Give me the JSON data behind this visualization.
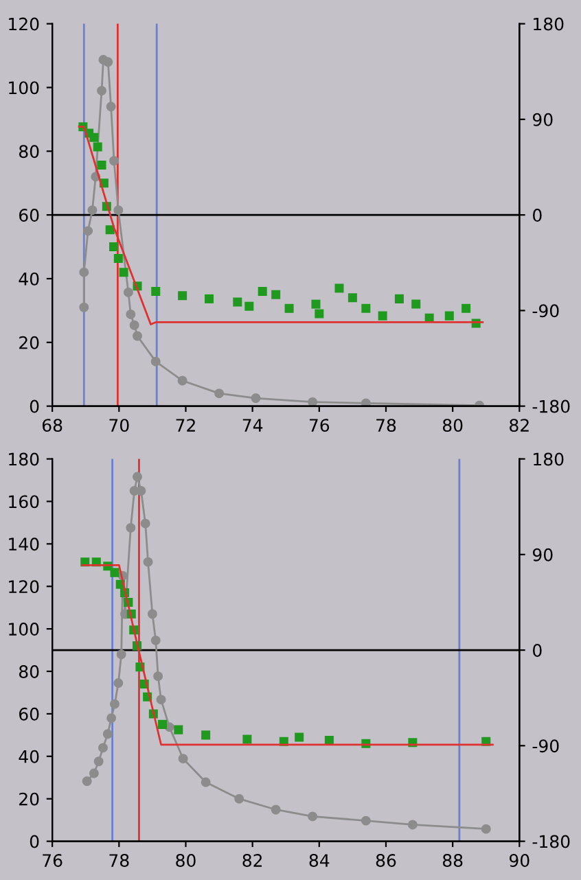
{
  "chart_data": [
    {
      "type": "line",
      "xlim": [
        68,
        82
      ],
      "xticks": [
        68,
        70,
        72,
        74,
        76,
        78,
        80,
        82
      ],
      "ylim": [
        0,
        120
      ],
      "yticks": [
        0,
        20,
        40,
        60,
        80,
        100,
        120
      ],
      "y2lim": [
        -180,
        180
      ],
      "y2ticks": [
        -180,
        -90,
        0,
        90,
        180
      ],
      "grid": false,
      "legend": false,
      "series": [
        {
          "marker": "circle",
          "color": "#8c8c8c",
          "x": [
            68.95,
            68.95,
            69.07,
            69.2,
            69.3,
            69.48,
            69.53,
            69.67,
            69.76,
            69.85,
            69.98,
            70.28,
            70.35,
            70.46,
            70.55,
            71.1,
            71.9,
            73.0,
            74.1,
            75.8,
            77.4,
            80.8
          ],
          "values": [
            31,
            42,
            55,
            61.5,
            72,
            99,
            108.7,
            108,
            94,
            77,
            61.5,
            35.7,
            28.8,
            25.4,
            22,
            14,
            8,
            4,
            2.5,
            1.3,
            0.9,
            0.2
          ]
        },
        {
          "type": "scatter",
          "marker": "square",
          "axis": "y2",
          "color": "#1f9a1f",
          "x": [
            68.92,
            69.1,
            69.25,
            69.36,
            69.48,
            69.55,
            69.63,
            69.73,
            69.84,
            69.98,
            70.14,
            70.55,
            71.1,
            71.9,
            72.7,
            73.55,
            73.9,
            74.3,
            74.7,
            75.1,
            75.9,
            76.0,
            76.6,
            77.0,
            77.4,
            77.9,
            78.4,
            78.9,
            79.3,
            79.9,
            80.4,
            80.7
          ],
          "values": [
            83,
            77,
            73,
            64,
            47,
            30,
            8,
            -14,
            -30,
            -41,
            -54,
            -67,
            -72,
            -76,
            -79,
            -82,
            -86,
            -72,
            -75,
            -88,
            -84,
            -93,
            -69,
            -78,
            -88,
            -95,
            -79,
            -84,
            -97,
            -95,
            -88,
            -102
          ]
        },
        {
          "marker": "none",
          "axis": "y2",
          "color": "#e03030",
          "x": [
            68.8,
            68.95,
            69.85,
            70.95,
            71.1,
            80.9
          ],
          "values": [
            83,
            83,
            -12,
            -103,
            -101,
            -101
          ]
        }
      ],
      "ref_lines": [
        {
          "axis": "x",
          "value": 68.95,
          "color": "#6a80d0"
        },
        {
          "axis": "x",
          "value": 71.13,
          "color": "#6a80d0"
        },
        {
          "axis": "x",
          "value": 69.96,
          "color": "#e03030"
        },
        {
          "axis": "y",
          "value": 60,
          "color": "#000000"
        }
      ]
    },
    {
      "type": "line",
      "xlim": [
        76,
        90
      ],
      "xticks": [
        76,
        78,
        80,
        82,
        84,
        86,
        88,
        90
      ],
      "ylim": [
        0,
        180
      ],
      "yticks": [
        0,
        20,
        40,
        60,
        80,
        100,
        120,
        140,
        160,
        180
      ],
      "y2lim": [
        -180,
        180
      ],
      "y2ticks": [
        -180,
        -90,
        0,
        90,
        180
      ],
      "grid": false,
      "legend": false,
      "series": [
        {
          "marker": "circle",
          "color": "#8c8c8c",
          "x": [
            77.04,
            77.25,
            77.39,
            77.52,
            77.66,
            77.77,
            77.87,
            77.98,
            78.07,
            78.11,
            78.18,
            78.35,
            78.46,
            78.55,
            78.66,
            78.79,
            78.87,
            79.0,
            79.1,
            79.17,
            79.26,
            79.51,
            79.92,
            80.6,
            81.6,
            82.7,
            83.8,
            85.4,
            86.8,
            89.0
          ],
          "values": [
            28.3,
            32,
            37.6,
            44,
            50.5,
            58,
            64.6,
            74.5,
            88,
            125,
            107,
            147.6,
            165,
            171.6,
            165,
            149.6,
            131.5,
            107,
            94.6,
            77.7,
            66.7,
            53.8,
            38.9,
            27.8,
            20,
            14.9,
            11.7,
            9.7,
            7.8,
            5.8
          ]
        },
        {
          "type": "scatter",
          "marker": "square",
          "axis": "y2",
          "color": "#1f9a1f",
          "x": [
            76.98,
            77.32,
            77.66,
            77.87,
            78.04,
            78.17,
            78.28,
            78.37,
            78.44,
            78.54,
            78.63,
            78.76,
            78.85,
            79.03,
            79.3,
            79.78,
            80.6,
            81.84,
            82.94,
            83.4,
            84.3,
            85.4,
            86.8,
            89.0
          ],
          "values": [
            83,
            83,
            79,
            73,
            62,
            54,
            45,
            34,
            19,
            4,
            -16,
            -32,
            -44,
            -60,
            -70,
            -75,
            -80,
            -84,
            -86,
            -82,
            -85,
            -88,
            -87,
            -86
          ]
        },
        {
          "marker": "none",
          "axis": "y2",
          "color": "#e03030",
          "x": [
            76.9,
            78.0,
            78.55,
            79.26,
            89.2
          ],
          "values": [
            80,
            80,
            5,
            -89,
            -89
          ]
        }
      ],
      "ref_lines": [
        {
          "axis": "x",
          "value": 77.8,
          "color": "#6a80d0"
        },
        {
          "axis": "x",
          "value": 88.2,
          "color": "#6a80d0"
        },
        {
          "axis": "x",
          "value": 78.6,
          "color": "#e03030"
        },
        {
          "axis": "y",
          "value": 90,
          "color": "#000000"
        }
      ]
    }
  ]
}
